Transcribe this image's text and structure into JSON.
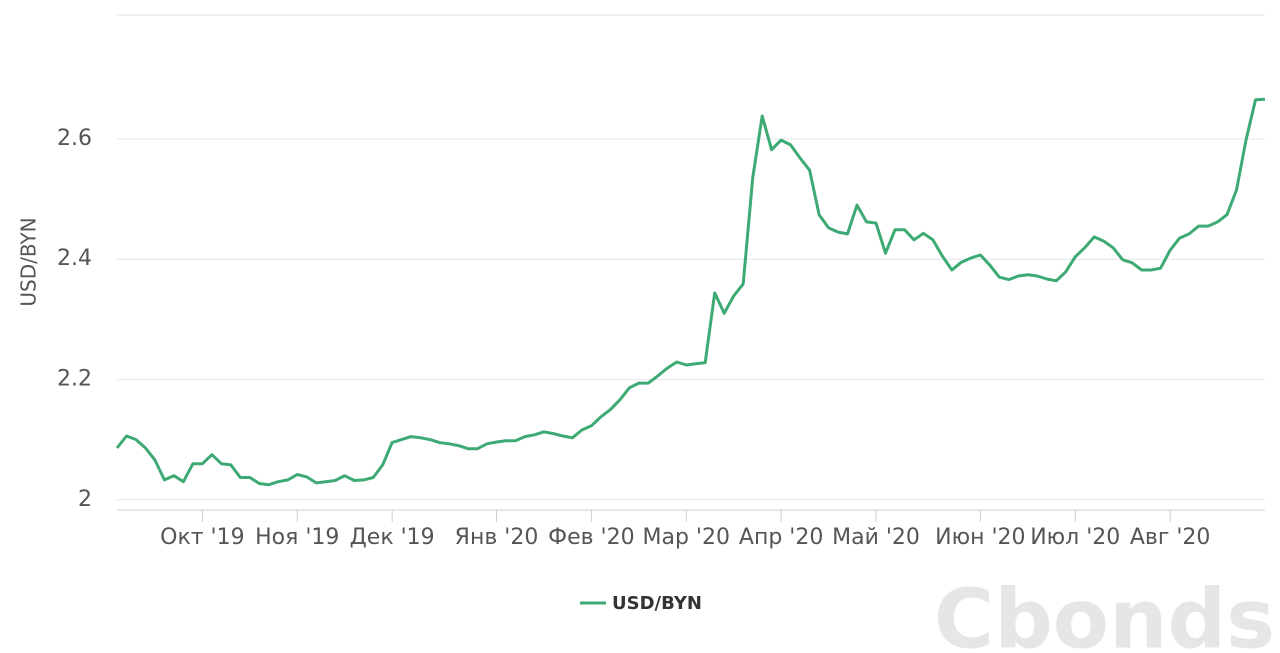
{
  "chart_data": {
    "type": "line",
    "y_label": "USD/BYN",
    "watermark": "Cbonds",
    "categories": [
      null,
      null,
      null,
      null,
      null,
      null,
      null,
      null,
      null,
      "Окт '19",
      null,
      null,
      null,
      null,
      null,
      null,
      null,
      null,
      null,
      "Ноя '19",
      null,
      null,
      null,
      null,
      null,
      null,
      null,
      null,
      null,
      "Дек '19",
      null,
      null,
      null,
      null,
      null,
      null,
      null,
      null,
      null,
      null,
      "Янв '20",
      null,
      null,
      null,
      null,
      null,
      null,
      null,
      null,
      null,
      "Фев '20",
      null,
      null,
      null,
      null,
      null,
      null,
      null,
      null,
      null,
      "Мар '20",
      null,
      null,
      null,
      null,
      null,
      null,
      null,
      null,
      null,
      "Апр '20",
      null,
      null,
      null,
      null,
      null,
      null,
      null,
      null,
      null,
      "Май '20",
      null,
      null,
      null,
      null,
      null,
      null,
      null,
      null,
      null,
      null,
      "Июн '20",
      null,
      null,
      null,
      null,
      null,
      null,
      null,
      null,
      null,
      "Июл '20",
      null,
      null,
      null,
      null,
      null,
      null,
      null,
      null,
      null,
      "Авг '20",
      null,
      null,
      null,
      null,
      null,
      null,
      null,
      null,
      null,
      null
    ],
    "series": [
      {
        "name": "USD/BYN",
        "color": "#3daa74",
        "values": [
          2.086,
          2.106,
          2.1,
          2.086,
          2.066,
          2.033,
          2.04,
          2.03,
          2.06,
          2.06,
          2.075,
          2.06,
          2.058,
          2.037,
          2.037,
          2.027,
          2.025,
          2.03,
          2.033,
          2.042,
          2.038,
          2.028,
          2.03,
          2.032,
          2.04,
          2.032,
          2.033,
          2.037,
          2.058,
          2.095,
          2.1,
          2.105,
          2.103,
          2.1,
          2.095,
          2.093,
          2.09,
          2.085,
          2.085,
          2.093,
          2.096,
          2.098,
          2.098,
          2.105,
          2.108,
          2.113,
          2.11,
          2.106,
          2.103,
          2.116,
          2.123,
          2.138,
          2.15,
          2.166,
          2.186,
          2.194,
          2.194,
          2.206,
          2.219,
          2.229,
          2.224,
          2.226,
          2.228,
          2.344,
          2.31,
          2.339,
          2.359,
          2.535,
          2.638,
          2.582,
          2.598,
          2.59,
          2.568,
          2.548,
          2.474,
          2.452,
          2.445,
          2.442,
          2.49,
          2.462,
          2.46,
          2.41,
          2.449,
          2.449,
          2.432,
          2.443,
          2.432,
          2.405,
          2.382,
          2.395,
          2.402,
          2.407,
          2.39,
          2.37,
          2.366,
          2.372,
          2.374,
          2.372,
          2.367,
          2.364,
          2.379,
          2.404,
          2.419,
          2.437,
          2.43,
          2.419,
          2.399,
          2.394,
          2.382,
          2.382,
          2.385,
          2.415,
          2.435,
          2.442,
          2.455,
          2.455,
          2.462,
          2.474,
          2.515,
          2.598,
          2.665,
          2.666
        ]
      }
    ],
    "ylim": [
      1.983,
      2.806
    ],
    "yticks": [
      2,
      2.2,
      2.4,
      2.6
    ],
    "grid": true
  }
}
